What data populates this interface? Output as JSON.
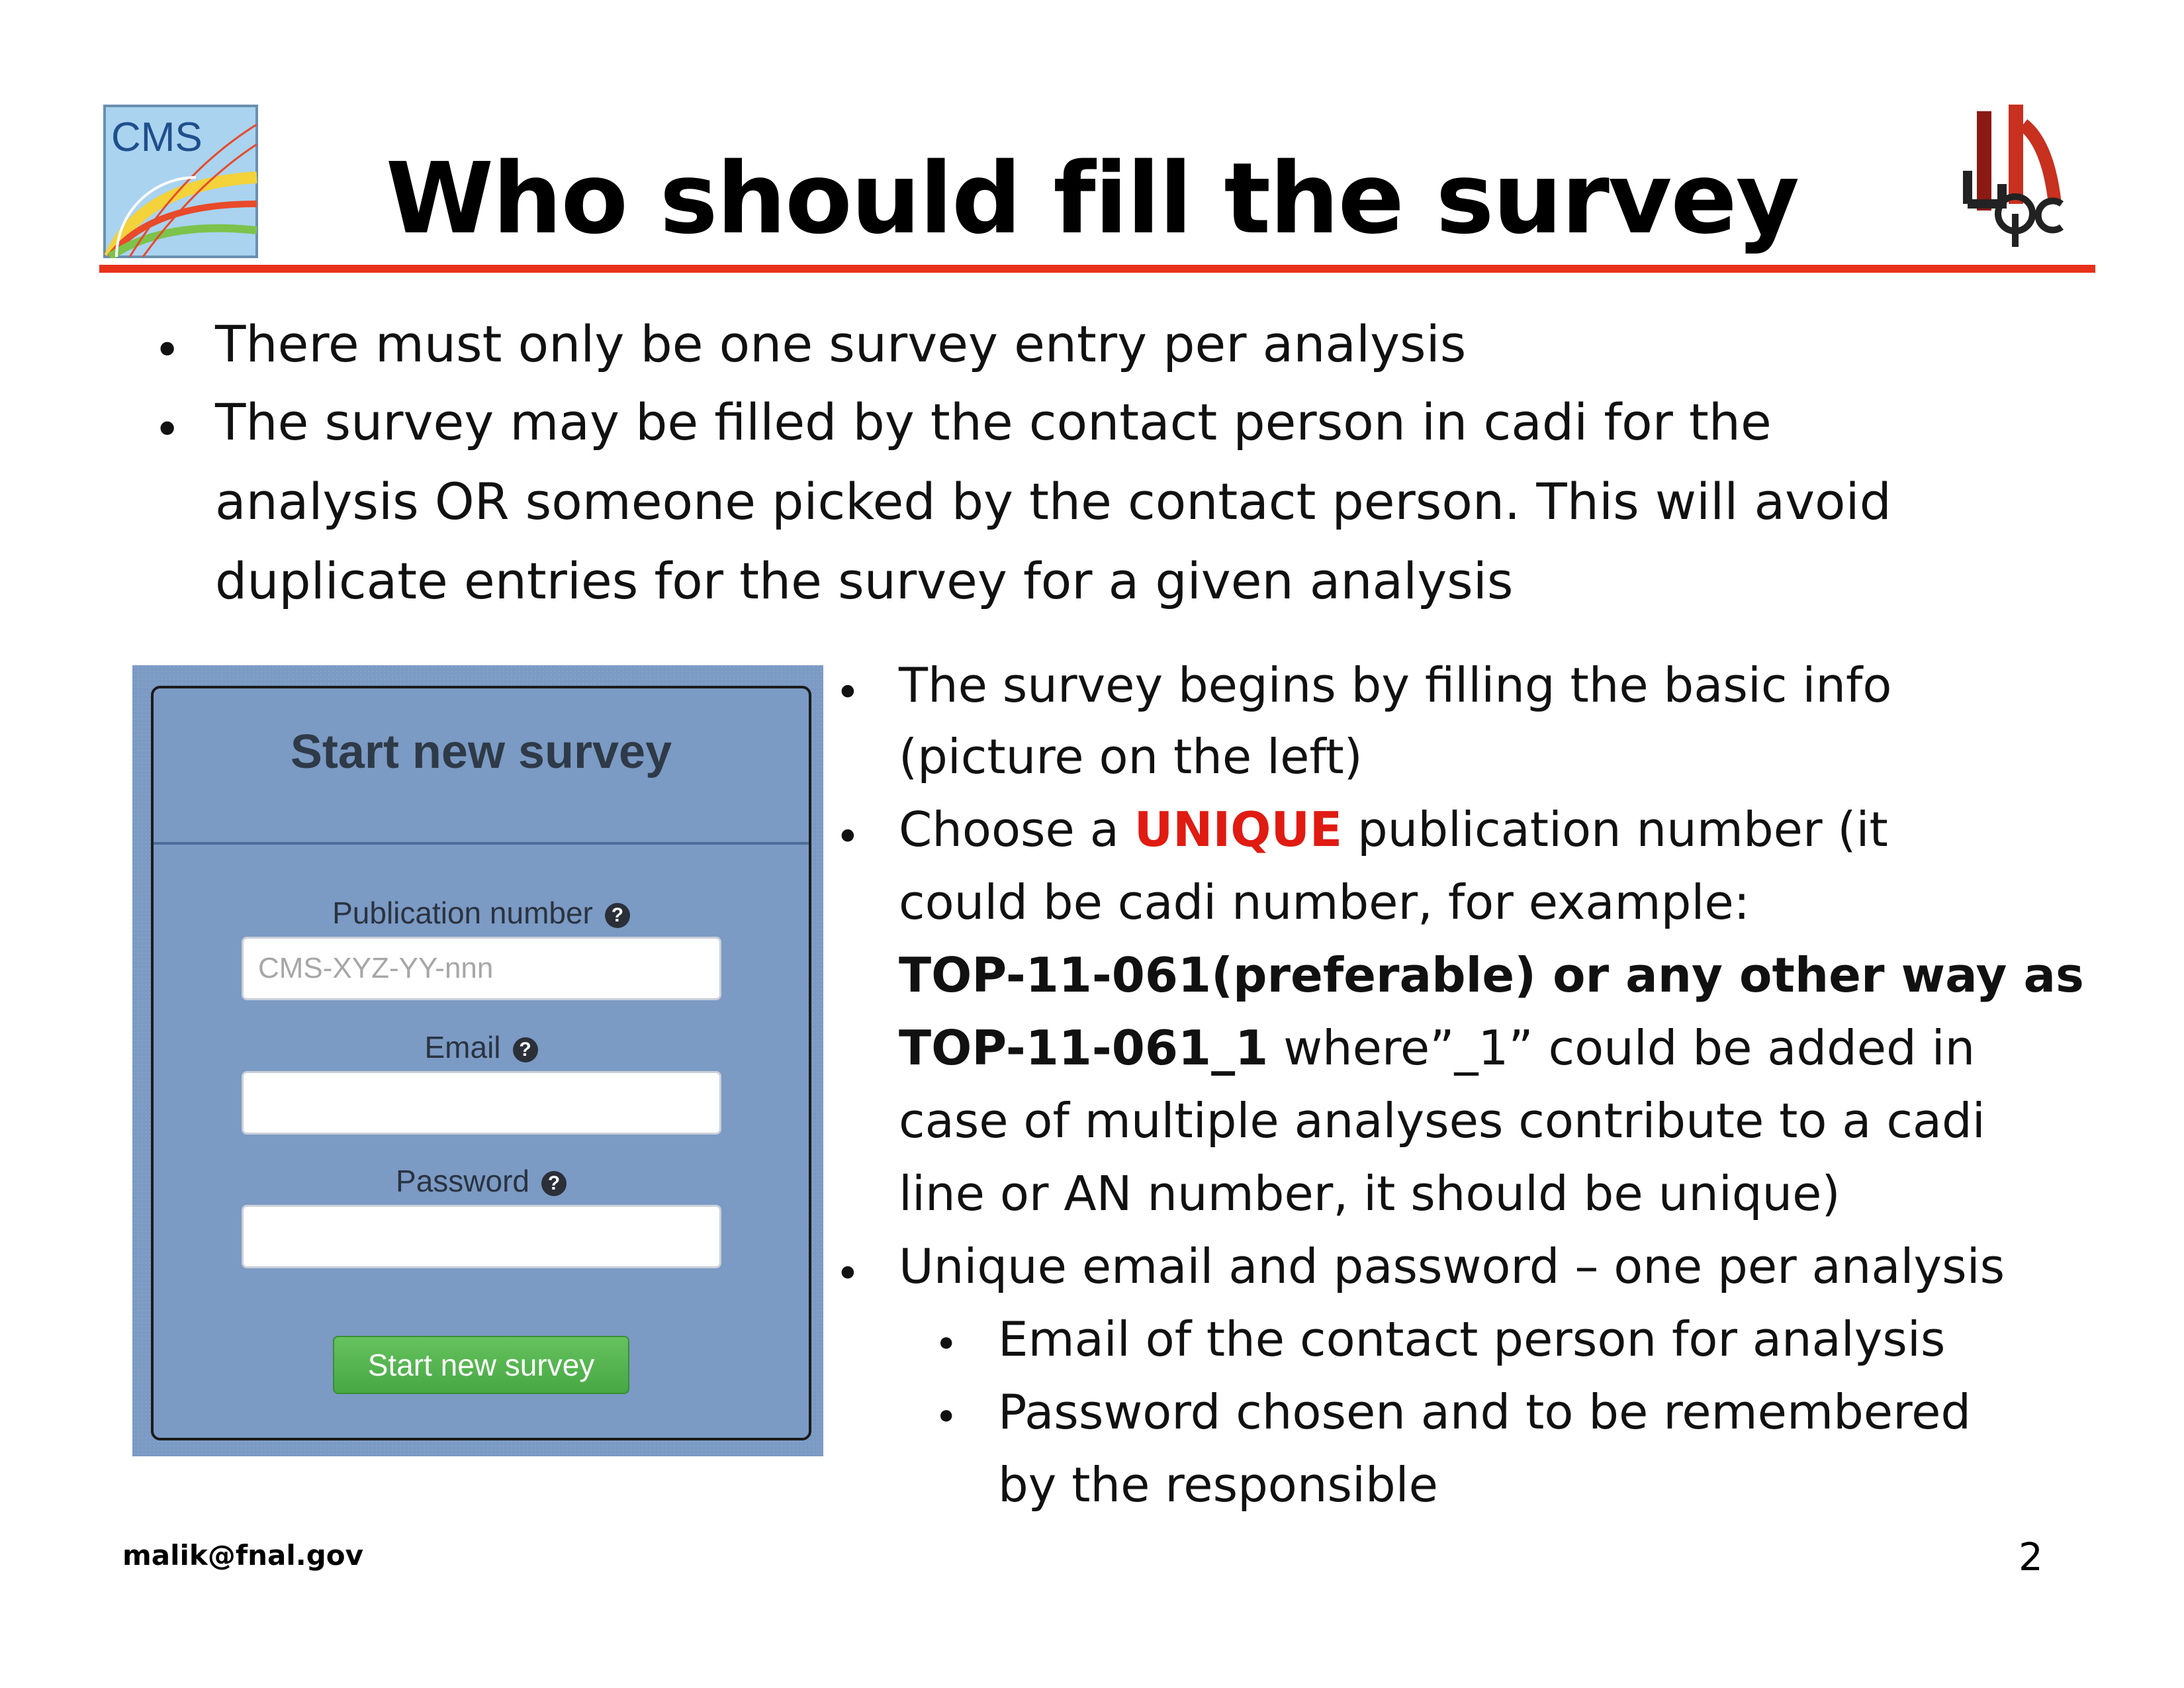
{
  "title": "Who should fill the survey",
  "logos": {
    "left": "CMS"
  },
  "top_bullets": {
    "b1": "There must only be one survey entry per analysis",
    "b2_lines": [
      "The survey may be filled by the contact person in cadi for the",
      "analysis OR someone picked by the contact person. This will avoid",
      "duplicate entries for the survey for a given analysis"
    ]
  },
  "form": {
    "title": "Start new survey",
    "publication_label": "Publication number",
    "publication_placeholder": "CMS-XYZ-YY-nnn",
    "email_label": "Email",
    "password_label": "Password",
    "help_glyph": "?",
    "button_label": "Start new survey"
  },
  "right_bullets": {
    "b1_lines": [
      "The survey begins by filling the basic info",
      "(picture on the left)"
    ],
    "b2": {
      "pre": "Choose a ",
      "highlight": "UNIQUE",
      "post": " publication number (it",
      "line2": "could be cadi number, for example:",
      "line3": "TOP-11-061(preferable) or any other way as",
      "line4_bold": "TOP-11-061_1",
      "line4_rest": " where”_1” could be added in",
      "line5": "case of  multiple analyses contribute to a cadi",
      "line6": "line or AN number, it should be unique)"
    },
    "b3": "Unique email and password – one per analysis",
    "sub1": "Email of the contact person for analysis",
    "sub2_lines": [
      "Password chosen and to be remembered",
      "by the responsible"
    ]
  },
  "colors": {
    "accent_red": "#e8311a",
    "unique_red": "#e01b12",
    "panel_blue": "#7b9ac4",
    "button_green": "#46a843"
  },
  "footer": {
    "email": "malik@fnal.gov",
    "page": "2"
  }
}
